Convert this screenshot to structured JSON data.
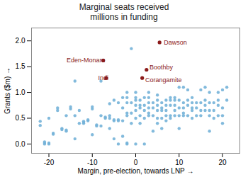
{
  "chart_data": {
    "type": "scatter",
    "title": "Marginal seats received\nmillions in funding",
    "xlabel": "Margin, pre-election, towards LNP",
    "ylabel": "Grants ($m)",
    "xlim": [
      -24,
      24
    ],
    "ylim": [
      -0.18,
      2.25
    ],
    "xticks": [
      -20,
      -10,
      0,
      10,
      20
    ],
    "yticks": [
      {
        "value": 0.0,
        "label": "0.0"
      },
      {
        "value": 0.5,
        "label": "0.5"
      },
      {
        "value": 1.0,
        "label": "1.0"
      },
      {
        "value": 1.5,
        "label": "1.5"
      },
      {
        "value": 2.0,
        "label": "2.0"
      }
    ],
    "grid": false,
    "color": "#74b3d8",
    "x": [
      -22,
      -22,
      -21,
      -21,
      -21,
      -20,
      -20,
      -20,
      -19,
      -19,
      -18,
      -18,
      -17,
      -17,
      -16,
      -16,
      -16,
      -15,
      -15,
      -14,
      -14,
      -14,
      -13,
      -13,
      -12,
      -12,
      -12,
      -11,
      -11,
      -10,
      -10,
      -10,
      -9,
      -9,
      -8,
      -8,
      -7,
      -7,
      -6,
      -6,
      -6,
      -6,
      -5,
      -5,
      -5,
      -5,
      -4,
      -4,
      -4,
      -4,
      -3,
      -3,
      -3,
      -3,
      -2,
      -2,
      -2,
      -2,
      -2,
      -2,
      -2,
      -1,
      -1,
      -1,
      -1,
      0,
      0,
      0,
      0,
      0,
      0,
      1,
      1,
      1,
      1,
      1,
      2,
      2,
      2,
      2,
      3,
      3,
      3,
      3,
      3,
      4,
      4,
      4,
      4,
      5,
      5,
      5,
      5,
      5,
      6,
      6,
      6,
      6,
      6,
      7,
      7,
      7,
      7,
      8,
      8,
      8,
      8,
      8,
      9,
      9,
      9,
      9,
      10,
      10,
      10,
      10,
      10,
      11,
      11,
      11,
      11,
      12,
      12,
      12,
      12,
      13,
      13,
      13,
      13,
      14,
      14,
      14,
      15,
      15,
      15,
      16,
      16,
      16,
      16,
      17,
      17,
      17,
      17,
      18,
      18,
      18,
      19,
      19,
      19,
      20,
      20,
      20,
      20,
      21,
      21,
      -8,
      0,
      2,
      3,
      5,
      7,
      9,
      11,
      13,
      15,
      17,
      19
    ],
    "values": [
      0.44,
      0.36,
      0.0,
      0.02,
      0.04,
      0.0,
      0.02,
      0.5,
      0.19,
      0.21,
      0.65,
      0.7,
      0.28,
      0.3,
      0.25,
      0.27,
      0.55,
      0.68,
      0.72,
      0.1,
      0.55,
      1.22,
      0.4,
      0.65,
      0.4,
      0.42,
      0.44,
      0.45,
      0.47,
      0.18,
      0.68,
      0.72,
      0.35,
      0.37,
      0.35,
      0.55,
      0.5,
      0.52,
      0.3,
      0.5,
      0.55,
      0.78,
      0.1,
      0.45,
      0.47,
      0.85,
      0.0,
      0.45,
      0.47,
      0.8,
      0.15,
      0.45,
      0.7,
      0.9,
      0.0,
      0.02,
      0.55,
      0.6,
      0.8,
      0.9,
      1.0,
      0.4,
      0.6,
      0.8,
      1.85,
      0.0,
      0.5,
      0.65,
      0.75,
      0.85,
      0.9,
      0.4,
      0.55,
      0.7,
      0.75,
      0.85,
      0.0,
      0.5,
      0.65,
      0.9,
      0.55,
      0.7,
      0.8,
      0.9,
      1.0,
      0.25,
      0.55,
      0.7,
      0.8,
      0.4,
      0.65,
      0.75,
      0.85,
      0.95,
      0.3,
      0.5,
      0.65,
      0.7,
      0.8,
      0.45,
      0.55,
      0.75,
      0.85,
      0.5,
      0.55,
      0.75,
      0.85,
      0.9,
      0.65,
      0.75,
      0.85,
      0.9,
      0.3,
      0.55,
      0.7,
      0.85,
      1.1,
      0.6,
      0.7,
      0.8,
      1.1,
      0.55,
      0.75,
      0.85,
      1.05,
      0.5,
      0.7,
      0.8,
      0.9,
      0.55,
      0.7,
      0.8,
      0.55,
      0.8,
      1.05,
      0.65,
      0.75,
      0.85,
      1.1,
      0.25,
      0.55,
      0.8,
      1.0,
      0.5,
      0.65,
      0.8,
      0.75,
      0.85,
      1.0,
      0.4,
      0.55,
      0.7,
      1.05,
      0.85,
      1.1,
      1.22,
      1.0,
      0.75,
      0.6,
      0.5,
      0.65,
      0.55,
      0.55,
      0.65,
      0.65,
      0.65,
      0.55
    ],
    "annotations": [
      {
        "x": 5.5,
        "y": 1.97,
        "text": "Dawson",
        "text_x": 6.5,
        "text_y": 1.97,
        "align": "left",
        "color": "#8b1a1a"
      },
      {
        "x": -7.5,
        "y": 1.62,
        "text": "Eden-Monaro",
        "text_x": -7.0,
        "text_y": 1.62,
        "align": "right",
        "color": "#8b1a1a"
      },
      {
        "x": 2.5,
        "y": 1.44,
        "text": "Boothby",
        "text_x": 3.2,
        "text_y": 1.49,
        "align": "left",
        "color": "#8b1a1a"
      },
      {
        "x": -6.8,
        "y": 1.28,
        "text": "Indi",
        "text_x": -6.3,
        "text_y": 1.28,
        "align": "right",
        "color": "#8b1a1a"
      },
      {
        "x": 1.5,
        "y": 1.28,
        "text": "Corangamite",
        "text_x": 2.2,
        "text_y": 1.24,
        "align": "left",
        "color": "#8b1a1a"
      }
    ]
  }
}
